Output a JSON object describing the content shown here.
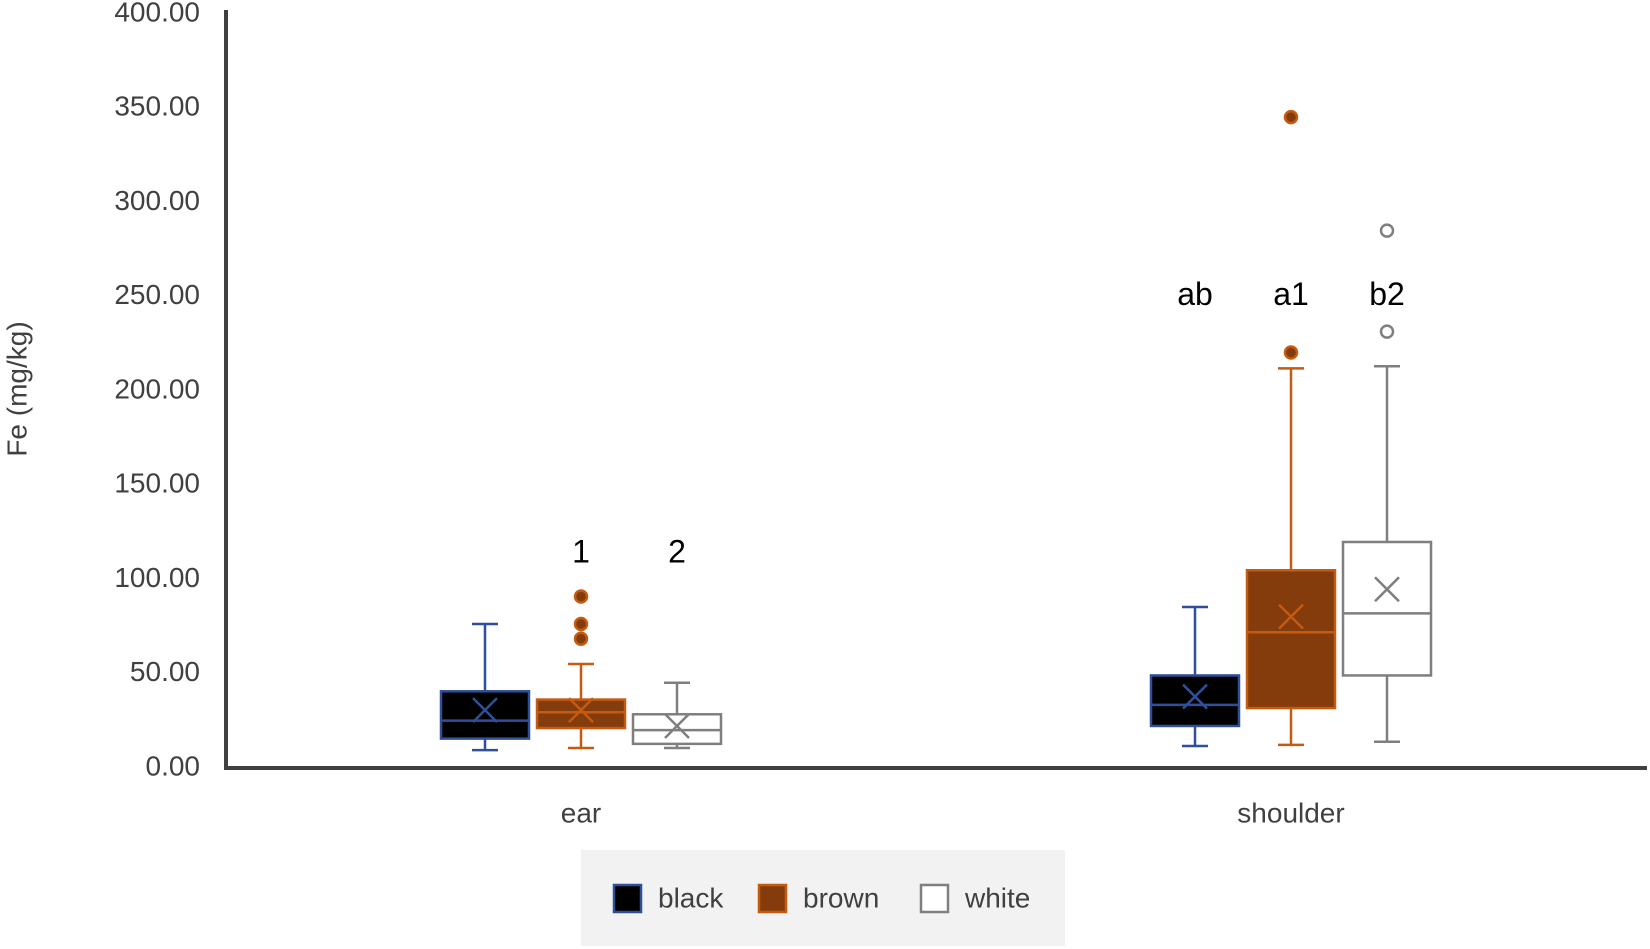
{
  "chart_data": {
    "type": "box",
    "y_label": "Fe (mg/kg)",
    "categories": [
      "ear",
      "shoulder"
    ],
    "ylim": [
      0,
      400
    ],
    "yticks": [
      {
        "value": 0,
        "label": "0.00"
      },
      {
        "value": 50,
        "label": "50.00"
      },
      {
        "value": 100,
        "label": "100.00"
      },
      {
        "value": 150,
        "label": "150.00"
      },
      {
        "value": 200,
        "label": "200.00"
      },
      {
        "value": 250,
        "label": "250.00"
      },
      {
        "value": 300,
        "label": "300.00"
      },
      {
        "value": 350,
        "label": "350.00"
      },
      {
        "value": 400,
        "label": "400.00"
      }
    ],
    "legend": "bottom",
    "series": [
      {
        "name": "black",
        "color": "#000000",
        "edge": "#2f4f9a",
        "annotations": [
          null,
          "ab"
        ],
        "boxes": [
          {
            "min": 9.5,
            "q1": 15.6,
            "median": 25.1,
            "q3": 40.7,
            "max": 76.4,
            "mean": 30.7,
            "outliers": []
          },
          {
            "min": 11.7,
            "q1": 22.3,
            "median": 33.5,
            "q3": 49.1,
            "max": 85.4,
            "mean": 37.9,
            "outliers": []
          }
        ]
      },
      {
        "name": "brown",
        "color": "#843c0c",
        "edge": "#c55a11",
        "annotations": [
          "1",
          "a1"
        ],
        "boxes": [
          {
            "min": 10.6,
            "q1": 21.2,
            "median": 29.6,
            "q3": 36.3,
            "max": 55.2,
            "mean": 30.7,
            "outliers": [
              68.6,
              76.4,
              91
            ]
          },
          {
            "min": 12.3,
            "q1": 31.8,
            "median": 72,
            "q3": 104.9,
            "max": 212,
            "mean": 80.3,
            "outliers": [
              220.4,
              345.3
            ]
          }
        ]
      },
      {
        "name": "white",
        "color": "#ffffff",
        "edge": "#7f7f7f",
        "annotations": [
          "2",
          "b2"
        ],
        "boxes": [
          {
            "min": 10.6,
            "q1": 12.8,
            "median": 20.1,
            "q3": 28.5,
            "max": 45.2,
            "mean": 22.3,
            "outliers": []
          },
          {
            "min": 13.9,
            "q1": 49.1,
            "median": 82,
            "q3": 119.9,
            "max": 213.1,
            "mean": 94.8,
            "outliers": [
              231.5,
              285.1
            ]
          }
        ]
      }
    ]
  }
}
